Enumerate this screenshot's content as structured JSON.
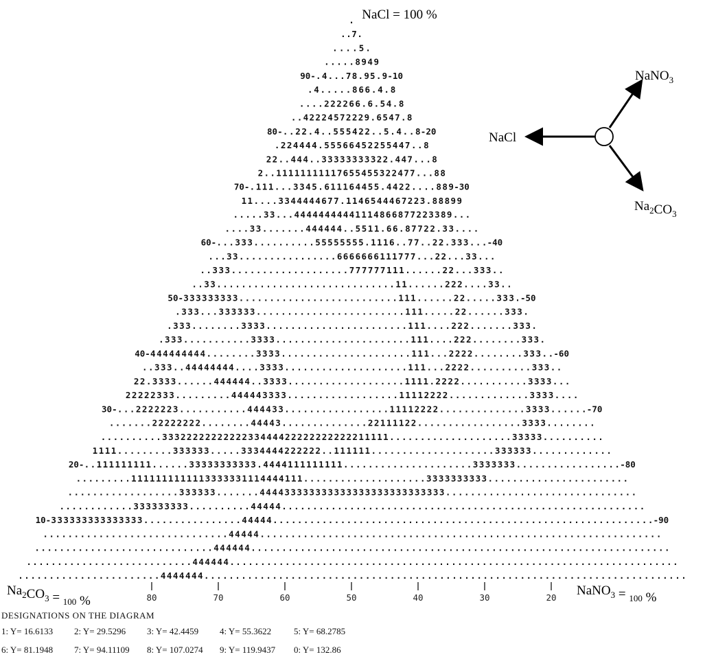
{
  "apex_labels": {
    "top": "NaCl = 100 %",
    "left": "Na2CO3 = 100 %",
    "right": "NaNO3 = 100 %"
  },
  "axis_indicator": {
    "left": "NaCl",
    "up_right": "NaNO3",
    "down_right": "Na2CO3"
  },
  "bottom_ticks": [
    "80",
    "70",
    "60",
    "50",
    "40",
    "30",
    "20"
  ],
  "left_ticks": [
    "90",
    "80",
    "70",
    "60",
    "50",
    "40",
    "30",
    "20",
    "10"
  ],
  "right_ticks": [
    "10",
    "20",
    "30",
    "40",
    "50",
    "60",
    "70",
    "80",
    "90"
  ],
  "legend": {
    "title": "DESIGNATIONS ON THE DIAGRAM",
    "items": [
      "1: Y= 16.6133",
      "2: Y= 29.5296",
      "3: Y= 42.4459",
      "4: Y= 55.3622",
      "5: Y= 68.2785",
      "6: Y= 81.1948",
      "7: Y= 94.11109",
      "8: Y= 107.0274",
      "9: Y= 119.9437",
      "0: Y= 132.86"
    ]
  },
  "grid": {
    "rows": 40,
    "levels": [
      {
        "d": "9",
        "c": [
          0.86,
          0.2
        ],
        "r": 0.028
      },
      {
        "d": "8",
        "c": [
          0.76,
          0.2
        ],
        "r": 0.032
      },
      {
        "d": "7",
        "c": [
          0.645,
          0.17
        ],
        "r": 0.03
      },
      {
        "d": "7",
        "c": [
          0.59,
          0.34
        ],
        "r": 0.022
      },
      {
        "d": "6",
        "c": [
          0.62,
          0.23
        ],
        "r": 0.02
      },
      {
        "d": "6",
        "c": [
          0.53,
          0.32
        ],
        "r": 0.02
      },
      {
        "d": "5",
        "c": [
          0.57,
          0.12
        ],
        "r": 0.03
      },
      {
        "d": "5",
        "c": [
          0.46,
          0.3
        ],
        "r": 0.02
      },
      {
        "d": "4",
        "c": [
          0.48,
          0.1
        ],
        "r": 0.05
      },
      {
        "d": "4",
        "c": [
          0.39,
          0.26
        ],
        "r": 0.022
      },
      {
        "d": "3",
        "c": [
          0.5,
          0.55
        ],
        "r": 0.06
      },
      {
        "d": "2",
        "c": [
          0.36,
          0.46
        ],
        "r": 0.06
      },
      {
        "d": "1",
        "c": [
          0.25,
          0.55
        ],
        "r": 0.055
      },
      {
        "d": "3",
        "c": [
          0.02,
          0.7
        ],
        "r": 0.04
      },
      {
        "d": "4",
        "c": [
          0.01,
          0.83
        ],
        "r": 0.045
      }
    ]
  }
}
